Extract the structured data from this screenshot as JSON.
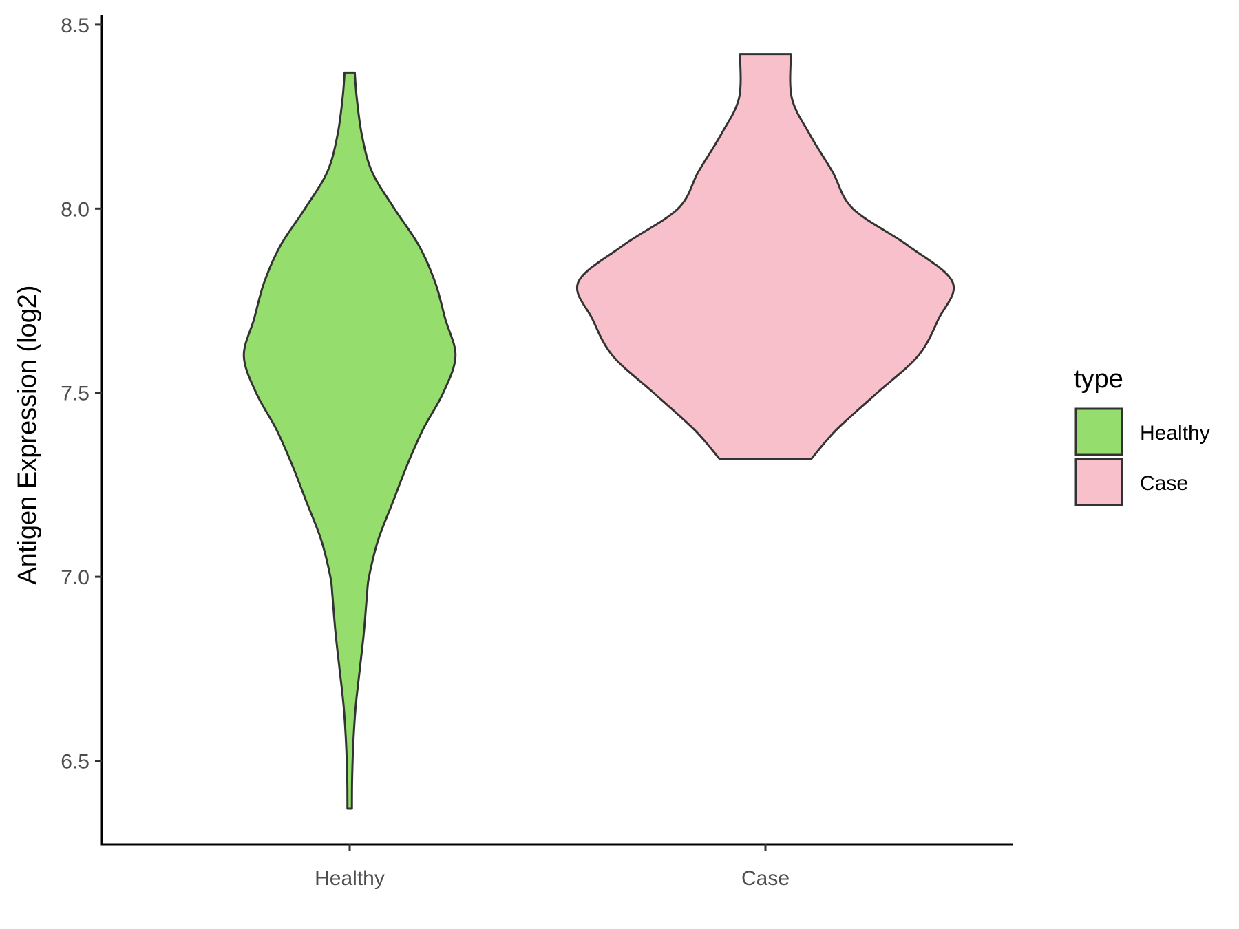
{
  "chart_data": {
    "type": "violin",
    "title": "",
    "xlabel": "",
    "ylabel": "Antigen Expression (log2)",
    "ylim": [
      6.28,
      8.53
    ],
    "yticks": [
      "6.5",
      "7.0",
      "7.5",
      "8.0",
      "8.5"
    ],
    "grid": false,
    "legend": {
      "title": "type",
      "position": "right"
    },
    "categories": [
      "Healthy",
      "Case"
    ],
    "series": [
      {
        "name": "Healthy",
        "color": "#95DD6D",
        "ymin": 6.37,
        "ymax": 8.37,
        "density": [
          [
            6.37,
            0.011
          ],
          [
            6.45,
            0.012
          ],
          [
            6.55,
            0.018
          ],
          [
            6.65,
            0.03
          ],
          [
            6.75,
            0.05
          ],
          [
            6.85,
            0.07
          ],
          [
            6.95,
            0.085
          ],
          [
            7.0,
            0.095
          ],
          [
            7.1,
            0.14
          ],
          [
            7.2,
            0.21
          ],
          [
            7.3,
            0.28
          ],
          [
            7.4,
            0.36
          ],
          [
            7.5,
            0.46
          ],
          [
            7.6,
            0.52
          ],
          [
            7.7,
            0.47
          ],
          [
            7.8,
            0.42
          ],
          [
            7.9,
            0.34
          ],
          [
            8.0,
            0.22
          ],
          [
            8.1,
            0.11
          ],
          [
            8.2,
            0.06
          ],
          [
            8.3,
            0.035
          ],
          [
            8.37,
            0.025
          ]
        ]
      },
      {
        "name": "Case",
        "color": "#F7C0CB",
        "ymin": 7.32,
        "ymax": 8.42,
        "density": [
          [
            7.32,
            0.225
          ],
          [
            7.4,
            0.35
          ],
          [
            7.5,
            0.55
          ],
          [
            7.6,
            0.75
          ],
          [
            7.7,
            0.85
          ],
          [
            7.8,
            0.92
          ],
          [
            7.9,
            0.7
          ],
          [
            8.0,
            0.43
          ],
          [
            8.1,
            0.33
          ],
          [
            8.2,
            0.22
          ],
          [
            8.3,
            0.13
          ],
          [
            8.42,
            0.125
          ]
        ]
      }
    ]
  }
}
